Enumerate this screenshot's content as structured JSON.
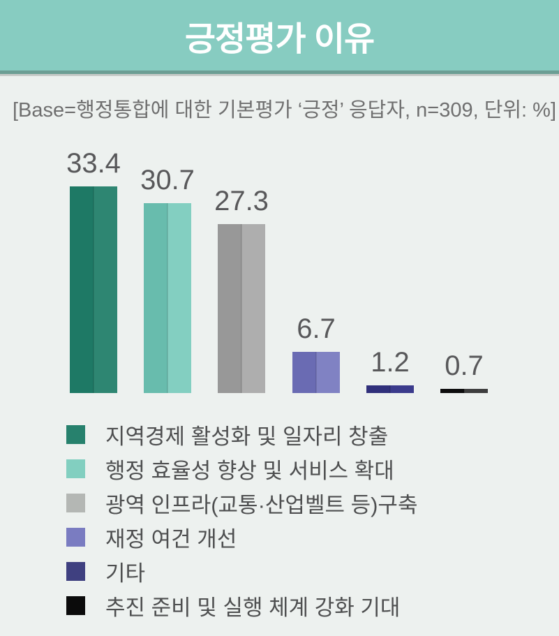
{
  "header": {
    "title": "긍정평가 이유",
    "bg_color": "#87ccc1",
    "strip_color": "#6c9e94"
  },
  "base_note": "[Base=행정통합에 대한 기본평가 ‘긍정’ 응답자, n=309, 단위: %]",
  "chart_data": {
    "type": "bar",
    "title": "긍정평가 이유",
    "base": "행정통합에 대한 기본평가 ‘긍정’ 응답자",
    "n": 309,
    "unit": "%",
    "categories": [
      "지역경제 활성화 및 일자리 창출",
      "행정 효율성 향상 및 서비스 확대",
      "광역 인프라(교통·산업벨트 등)구축",
      "재정 여건 개선",
      "기타",
      "추진 준비 및 실행 체계 강화 기대"
    ],
    "values": [
      33.4,
      30.7,
      27.3,
      6.7,
      1.2,
      0.7
    ],
    "value_labels": [
      "33.4",
      "30.7",
      "27.3",
      "6.7",
      "1.2",
      "0.7"
    ],
    "bar_colors_left": [
      "#1e7965",
      "#68bcad",
      "#989898",
      "#6a6bb3",
      "#30307b",
      "#0d0d0d"
    ],
    "bar_colors_right": [
      "#2e8672",
      "#83cfc1",
      "#aeaeae",
      "#8082c3",
      "#3b3b8c",
      "#3e3e3e"
    ],
    "legend_colors": [
      "#27816d",
      "#82cfc0",
      "#b4b7b4",
      "#7a7cc1",
      "#3f4080",
      "#0b0b0b"
    ],
    "ylim": [
      0,
      35
    ],
    "grid": false,
    "axis_lines": false,
    "legend_position": "bottom"
  }
}
